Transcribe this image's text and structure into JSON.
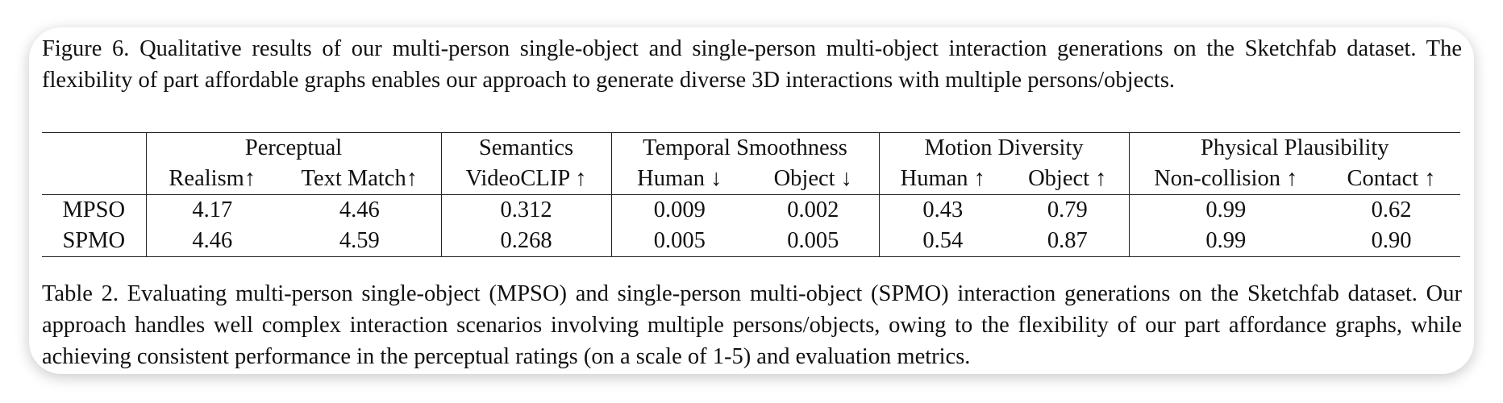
{
  "figure_caption": "Figure 6.  Qualitative results of our multi-person single-object and single-person multi-object interaction generations on the Sketchfab dataset. The flexibility of part affordable graphs enables our approach to generate diverse 3D interactions with multiple persons/objects.",
  "table": {
    "groups": [
      "Perceptual",
      "Semantics",
      "Temporal Smoothness",
      "Motion Diversity",
      "Physical Plausibility"
    ],
    "subheaders": [
      "Realism↑",
      "Text Match↑",
      "VideoCLIP ↑",
      "Human ↓",
      "Object ↓",
      "Human ↑",
      "Object ↑",
      "Non-collision ↑",
      "Contact ↑"
    ],
    "rows": [
      [
        "MPSO",
        "4.17",
        "4.46",
        "0.312",
        "0.009",
        "0.002",
        "0.43",
        "0.79",
        "0.99",
        "0.62"
      ],
      [
        "SPMO",
        "4.46",
        "4.59",
        "0.268",
        "0.005",
        "0.005",
        "0.54",
        "0.87",
        "0.99",
        "0.90"
      ]
    ]
  },
  "table_caption": "Table 2. Evaluating multi-person single-object (MPSO) and single-person multi-object (SPMO) interaction generations on the Sketchfab dataset. Our approach handles well complex interaction scenarios involving multiple persons/objects, owing to the flexibility of our part affordance graphs, while achieving consistent performance in the perceptual ratings (on a scale of 1-5) and evaluation metrics."
}
